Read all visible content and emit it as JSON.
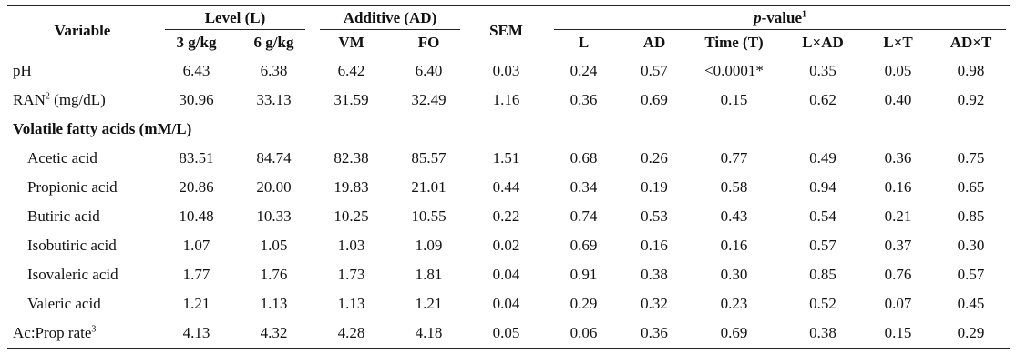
{
  "headers": {
    "variable": "Variable",
    "level": "Level (L)",
    "additive": "Additive (AD)",
    "sem": "SEM",
    "pvalue_prefix": "p",
    "pvalue_suffix": "-value",
    "pvalue_note": "1",
    "sub": [
      "3 g/kg",
      "6 g/kg",
      "VM",
      "FO"
    ],
    "pcols": [
      "L",
      "AD",
      "Time (T)",
      "L×AD",
      "L×T",
      "AD×T"
    ]
  },
  "rows": [
    {
      "label": "pH",
      "note": "",
      "unit": "",
      "indent": false,
      "values": [
        "6.43",
        "6.38",
        "6.42",
        "6.40",
        "0.03",
        "0.24",
        "0.57",
        "<0.0001*",
        "0.35",
        "0.05",
        "0.98"
      ]
    },
    {
      "label": "RAN",
      "note": "2",
      "unit": " (mg/dL)",
      "indent": false,
      "values": [
        "30.96",
        "33.13",
        "31.59",
        "32.49",
        "1.16",
        "0.36",
        "0.69",
        "0.15",
        "0.62",
        "0.40",
        "0.92"
      ]
    }
  ],
  "section": {
    "label": "Volatile fatty acids (mM/L)"
  },
  "vfa_rows": [
    {
      "label": "Acetic acid",
      "values": [
        "83.51",
        "84.74",
        "82.38",
        "85.57",
        "1.51",
        "0.68",
        "0.26",
        "0.77",
        "0.49",
        "0.36",
        "0.75"
      ]
    },
    {
      "label": "Propionic acid",
      "values": [
        "20.86",
        "20.00",
        "19.83",
        "21.01",
        "0.44",
        "0.34",
        "0.19",
        "0.58",
        "0.94",
        "0.16",
        "0.65"
      ]
    },
    {
      "label": "Butiric acid",
      "values": [
        "10.48",
        "10.33",
        "10.25",
        "10.55",
        "0.22",
        "0.74",
        "0.53",
        "0.43",
        "0.54",
        "0.21",
        "0.85"
      ]
    },
    {
      "label": "Isobutiric acid",
      "values": [
        "1.07",
        "1.05",
        "1.03",
        "1.09",
        "0.02",
        "0.69",
        "0.16",
        "0.16",
        "0.57",
        "0.37",
        "0.30"
      ]
    },
    {
      "label": "Isovaleric acid",
      "values": [
        "1.77",
        "1.76",
        "1.73",
        "1.81",
        "0.04",
        "0.91",
        "0.38",
        "0.30",
        "0.85",
        "0.76",
        "0.57"
      ]
    },
    {
      "label": "Valeric acid",
      "values": [
        "1.21",
        "1.13",
        "1.13",
        "1.21",
        "0.04",
        "0.29",
        "0.32",
        "0.23",
        "0.52",
        "0.07",
        "0.45"
      ]
    }
  ],
  "last_row": {
    "label": "Ac:Prop rate",
    "note": "3",
    "values": [
      "4.13",
      "4.32",
      "4.28",
      "4.18",
      "0.05",
      "0.06",
      "0.36",
      "0.69",
      "0.38",
      "0.15",
      "0.29"
    ]
  }
}
